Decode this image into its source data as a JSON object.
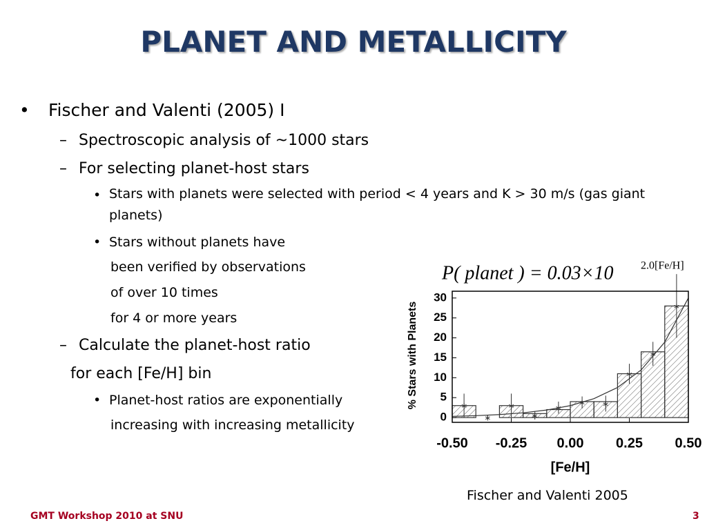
{
  "slide": {
    "title": "PLANET AND METALLICITY",
    "items": [
      {
        "marker": "•",
        "lines": [
          "Fischer and Valenti (2005) I"
        ]
      },
      {
        "marker": "–",
        "lines": [
          "Spectroscopic analysis of ~1000 stars"
        ]
      },
      {
        "marker": "–",
        "lines": [
          "For selecting planet-host stars"
        ]
      },
      {
        "marker": "•",
        "lines": [
          "Stars with planets were selected with period < 4 years and K > 30 m/s (gas giant planets)"
        ]
      },
      {
        "marker": "•",
        "lines": [
          "Stars without planets have",
          "been verified by observations",
          "of over 10 times",
          "for 4 or more years"
        ]
      },
      {
        "marker": "–",
        "lines": [
          "Calculate the planet-host ratio",
          "for each [Fe/H] bin"
        ]
      },
      {
        "marker": "•",
        "lines": [
          "Planet-host ratios are exponentially",
          "increasing with increasing metallicity"
        ]
      }
    ],
    "footer": "GMT Workshop 2010 at SNU",
    "page_number": "3",
    "caption": "Fischer and Valenti  2005"
  },
  "chart_data": {
    "type": "histogram",
    "formula": "P( planet ) = 0.03×10",
    "formula_exponent": "2.0[Fe/H]",
    "x_label": "[Fe/H]",
    "y_label": "% Stars with Planets",
    "bins": [
      -0.5,
      -0.4,
      -0.3,
      -0.2,
      -0.1,
      0.0,
      0.1,
      0.2,
      0.3,
      0.4,
      0.5
    ],
    "counts": [
      3,
      0,
      3,
      1,
      2,
      4,
      4,
      11,
      16.5,
      28
    ],
    "points": {
      "x": [
        -0.45,
        -0.35,
        -0.25,
        -0.15,
        -0.05,
        0.05,
        0.15,
        0.25,
        0.35,
        0.45
      ],
      "values": [
        3,
        0,
        3,
        0.5,
        2.5,
        3.8,
        3.5,
        11,
        16,
        28
      ],
      "errors": [
        3,
        0.5,
        3,
        1,
        1.5,
        1.5,
        2,
        2.5,
        3,
        8
      ]
    },
    "fit_curve": {
      "x": [
        -0.5,
        -0.4,
        -0.3,
        -0.2,
        -0.1,
        0.0,
        0.1,
        0.2,
        0.3,
        0.4,
        0.5
      ],
      "values": [
        0.3,
        0.48,
        0.75,
        1.19,
        1.89,
        3,
        4.75,
        7.54,
        11.94,
        18.93,
        30
      ]
    },
    "color": "#333333",
    "xlim": [
      -0.5,
      0.5
    ],
    "ylim": [
      -1.2,
      31.7
    ],
    "xticks": [
      {
        "value": -0.5,
        "label": "-0.50"
      },
      {
        "value": -0.25,
        "label": "-0.25"
      },
      {
        "value": 0,
        "label": "0.00"
      },
      {
        "value": 0.25,
        "label": "0.25"
      },
      {
        "value": 0.5,
        "label": "0.50"
      }
    ],
    "yticks": [
      0,
      5,
      10,
      15,
      20,
      25,
      30
    ]
  }
}
